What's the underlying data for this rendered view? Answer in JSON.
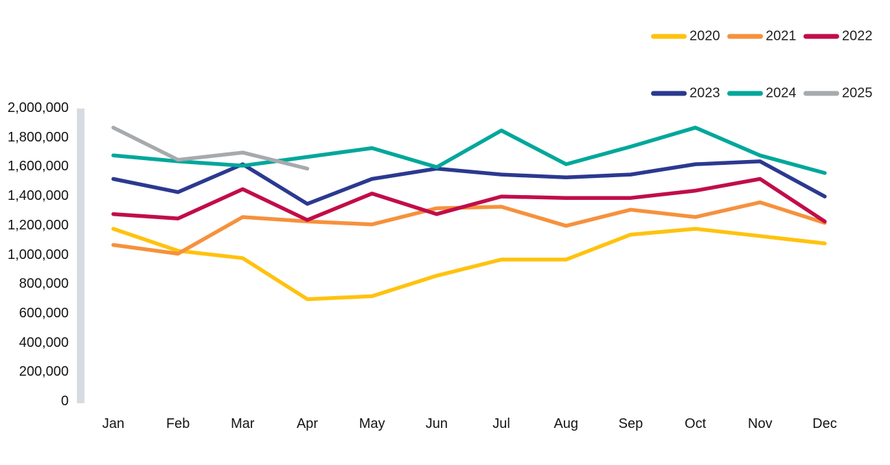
{
  "chart_data": {
    "type": "line",
    "title": "",
    "categories": [
      "Jan",
      "Feb",
      "Mar",
      "Apr",
      "May",
      "Jun",
      "Jul",
      "Aug",
      "Sep",
      "Oct",
      "Nov",
      "Dec"
    ],
    "y_axis": {
      "min": 0,
      "max": 2000000,
      "step": 200000,
      "tick_labels": [
        "0",
        "200,000",
        "400,000",
        "600,000",
        "800,000",
        "1,000,000",
        "1,200,000",
        "1,400,000",
        "1,600,000",
        "1,800,000",
        "2,000,000"
      ]
    },
    "grid": false,
    "legend_position": "top-right",
    "legend_rows": [
      [
        "2020",
        "2021",
        "2022"
      ],
      [
        "2023",
        "2024",
        "2025"
      ]
    ],
    "axis_bar_color": "#d6dbe2",
    "series": [
      {
        "name": "2020",
        "color": "#ffc20e",
        "values": [
          1180000,
          1030000,
          980000,
          700000,
          720000,
          860000,
          970000,
          970000,
          1140000,
          1180000,
          1130000,
          1080000
        ]
      },
      {
        "name": "2021",
        "color": "#f6913d",
        "values": [
          1070000,
          1010000,
          1260000,
          1230000,
          1210000,
          1320000,
          1330000,
          1200000,
          1310000,
          1260000,
          1360000,
          1220000
        ]
      },
      {
        "name": "2022",
        "color": "#c10d49",
        "values": [
          1280000,
          1250000,
          1450000,
          1240000,
          1420000,
          1280000,
          1400000,
          1390000,
          1390000,
          1440000,
          1520000,
          1230000
        ]
      },
      {
        "name": "2023",
        "color": "#2b3990",
        "values": [
          1520000,
          1430000,
          1620000,
          1350000,
          1520000,
          1590000,
          1550000,
          1530000,
          1550000,
          1620000,
          1640000,
          1400000
        ]
      },
      {
        "name": "2024",
        "color": "#00a79b",
        "values": [
          1680000,
          1640000,
          1610000,
          1670000,
          1730000,
          1600000,
          1850000,
          1620000,
          1740000,
          1870000,
          1680000,
          1560000
        ]
      },
      {
        "name": "2025",
        "color": "#a7aaad",
        "values": [
          1870000,
          1650000,
          1700000,
          1590000,
          null,
          null,
          null,
          null,
          null,
          null,
          null,
          null
        ]
      }
    ]
  }
}
